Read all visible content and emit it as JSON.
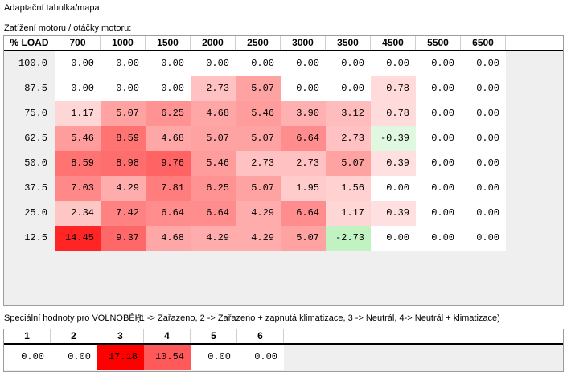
{
  "labels": {
    "title": "Adaptační tabulka/mapa:",
    "subtitle": "Zatížení motoru / otáčky motoru:"
  },
  "main_table": {
    "corner_label": "% LOAD",
    "rpm_columns": [
      "700",
      "1000",
      "1500",
      "2000",
      "2500",
      "3000",
      "3500",
      "4500",
      "5500",
      "6500"
    ],
    "rows": [
      {
        "load": "100.0",
        "values": [
          "0.00",
          "0.00",
          "0.00",
          "0.00",
          "0.00",
          "0.00",
          "0.00",
          "0.00",
          "0.00",
          "0.00"
        ]
      },
      {
        "load": "87.5",
        "values": [
          "0.00",
          "0.00",
          "0.00",
          "2.73",
          "5.07",
          "0.00",
          "0.00",
          "0.78",
          "0.00",
          "0.00"
        ]
      },
      {
        "load": "75.0",
        "values": [
          "1.17",
          "5.07",
          "6.25",
          "4.68",
          "5.46",
          "3.90",
          "3.12",
          "0.78",
          "0.00",
          "0.00"
        ]
      },
      {
        "load": "62.5",
        "values": [
          "5.46",
          "8.59",
          "4.68",
          "5.07",
          "5.07",
          "6.64",
          "2.73",
          "-0.39",
          "0.00",
          "0.00"
        ]
      },
      {
        "load": "50.0",
        "values": [
          "8.59",
          "8.98",
          "9.76",
          "5.46",
          "2.73",
          "2.73",
          "5.07",
          "0.39",
          "0.00",
          "0.00"
        ]
      },
      {
        "load": "37.5",
        "values": [
          "7.03",
          "4.29",
          "7.81",
          "6.25",
          "5.07",
          "1.95",
          "1.56",
          "0.00",
          "0.00",
          "0.00"
        ]
      },
      {
        "load": "25.0",
        "values": [
          "2.34",
          "7.42",
          "6.64",
          "6.64",
          "4.29",
          "6.64",
          "1.17",
          "0.39",
          "0.00",
          "0.00"
        ]
      },
      {
        "load": "12.5",
        "values": [
          "14.45",
          "9.37",
          "4.68",
          "4.29",
          "4.29",
          "5.07",
          "-2.73",
          "0.00",
          "0.00",
          "0.00"
        ]
      }
    ]
  },
  "idle_section": {
    "label": "Speciální hodnoty pro VOLNOBĚH:",
    "legend": "(1 -> Zařazeno, 2 -> Zařazeno + zapnutá klimatizace, 3 -> Neutrál, 4-> Neutrál + klimatizace)",
    "columns": [
      "1",
      "2",
      "3",
      "4",
      "5",
      "6"
    ],
    "values": [
      "0.00",
      "0.00",
      "17.18",
      "10.54",
      "0.00",
      "0.00"
    ]
  },
  "heatmap": {
    "max_abs": 17.2,
    "floor": 0.1,
    "positive_color": "#ff0000",
    "negative_color": "#00c800",
    "zero_color": "#ffffff"
  },
  "ui_colors": {
    "panel_border": "#9c9c9c",
    "filler_gray": "#efefef",
    "header_divider": "#000000"
  }
}
